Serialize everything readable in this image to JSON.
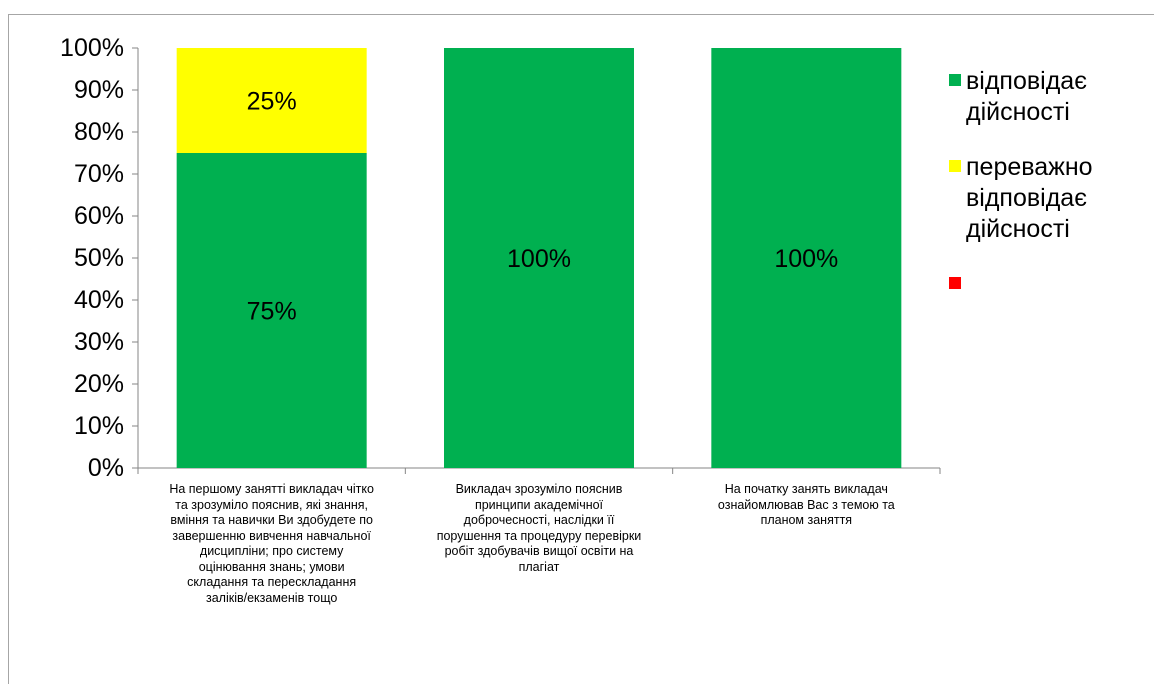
{
  "chart_data": {
    "type": "bar",
    "stacked": true,
    "percent": true,
    "ylim": [
      0,
      100
    ],
    "yticks": [
      "0%",
      "10%",
      "20%",
      "30%",
      "40%",
      "50%",
      "60%",
      "70%",
      "80%",
      "90%",
      "100%"
    ],
    "categories": [
      "На першому занятті викладач чітко та зрозуміло пояснив, які знання, вміння та навички Ви здобудете по завершенню вивчення навчальної дисципліни; про систему оцінювання знань; умови складання та перескладання заліків/екзаменів тощо",
      "Викладач зрозуміло пояснив принципи академічної доброчесності, наслідки її порушення та процедуру перевірки робіт здобувачів вищої освіти на плагіат",
      "На початку занять викладач ознайомлював Вас з темою та планом заняття"
    ],
    "category_lines": [
      [
        "На першому занятті викладач чітко",
        "та зрозуміло пояснив, які знання,",
        "вміння та навички Ви здобудете по",
        "завершенню вивчення навчальної",
        "дисципліни; про систему",
        "оцінювання знань; умови",
        "складання та перескладання",
        "заліків/екзаменів тощо"
      ],
      [
        "Викладач зрозуміло пояснив",
        "принципи академічної",
        "доброчесності, наслідки її",
        "порушення та процедуру перевірки",
        "робіт здобувачів вищої освіти на",
        "плагіат"
      ],
      [
        "На початку занять викладач",
        "ознайомлював Вас з темою та",
        "планом заняття"
      ]
    ],
    "series": [
      {
        "name": "відповідає дійсності",
        "color": "#00b050",
        "values": [
          75,
          100,
          100
        ],
        "labels": [
          "75%",
          "100%",
          "100%"
        ]
      },
      {
        "name": "переважно відповідає дійсності",
        "color": "#ffff00",
        "values": [
          25,
          0,
          0
        ],
        "labels": [
          "25%",
          "",
          ""
        ]
      },
      {
        "name": "",
        "color": "#ff0000",
        "values": [
          0,
          0,
          0
        ],
        "labels": [
          "",
          "",
          ""
        ]
      }
    ],
    "legend_position": "right",
    "grid": false
  }
}
